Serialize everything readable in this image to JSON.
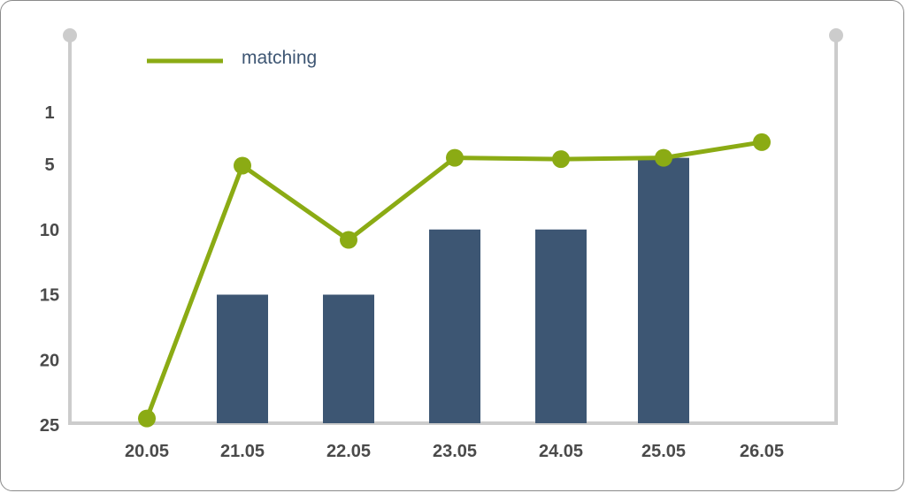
{
  "colors": {
    "bar": "#3d5673",
    "line": "#8bab14",
    "axis": "#cccccc",
    "text": "#4a4a4a",
    "legend_text": "#3e5673"
  },
  "chart_data": {
    "type": "bar",
    "title": "",
    "xlabel": "",
    "ylabel": "",
    "categories": [
      "20.05",
      "21.05",
      "22.05",
      "23.05",
      "24.05",
      "25.05",
      "26.05"
    ],
    "y_ticks": [
      "1",
      "5",
      "10",
      "15",
      "20",
      "25"
    ],
    "ylim": [
      30,
      0
    ],
    "y_inverted": true,
    "grid": false,
    "legend": {
      "position": "top-left",
      "entries": [
        "matching"
      ]
    },
    "series": [
      {
        "kind": "bar",
        "values": [
          null,
          15,
          15,
          10,
          10,
          4.5,
          null
        ]
      },
      {
        "name": "matching",
        "kind": "line",
        "values": [
          24.5,
          5.1,
          10.8,
          4.5,
          4.6,
          4.5,
          3.3
        ]
      }
    ]
  }
}
